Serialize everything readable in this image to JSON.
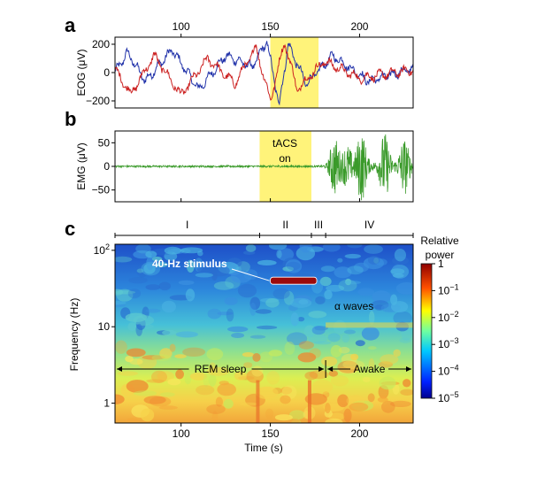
{
  "chart_data": [
    {
      "type": "line",
      "panel_label": "a",
      "ylabel": "EOG (μV)",
      "xlim": [
        63,
        230
      ],
      "ylim": [
        -250,
        250
      ],
      "x_ticks_top": [
        100,
        150,
        200
      ],
      "y_ticks": [
        -200,
        0,
        200
      ],
      "highlight": {
        "x_start": 150,
        "x_end": 177,
        "color": "#fff37a"
      },
      "series": [
        {
          "color": "#2233aa",
          "trace": [
            [
              63,
              0
            ],
            [
              70,
              140
            ],
            [
              80,
              -60
            ],
            [
              95,
              160
            ],
            [
              110,
              -120
            ],
            [
              125,
              120
            ],
            [
              140,
              40
            ],
            [
              148,
              220
            ],
            [
              155,
              -230
            ],
            [
              160,
              200
            ],
            [
              170,
              -80
            ],
            [
              185,
              120
            ],
            [
              205,
              -60
            ],
            [
              230,
              30
            ]
          ]
        },
        {
          "color": "#cc2222",
          "trace": [
            [
              63,
              20
            ],
            [
              72,
              -150
            ],
            [
              85,
              120
            ],
            [
              100,
              -160
            ],
            [
              115,
              100
            ],
            [
              130,
              -80
            ],
            [
              142,
              180
            ],
            [
              150,
              -200
            ],
            [
              158,
              220
            ],
            [
              165,
              -120
            ],
            [
              180,
              80
            ],
            [
              200,
              -40
            ],
            [
              230,
              20
            ]
          ]
        }
      ]
    },
    {
      "type": "line",
      "panel_label": "b",
      "ylabel": "EMG (μV)",
      "xlim": [
        63,
        230
      ],
      "ylim": [
        -75,
        75
      ],
      "y_ticks": [
        -50,
        0,
        50
      ],
      "highlight": {
        "x_start": 144,
        "x_end": 173,
        "color": "#fff37a"
      },
      "annotation": [
        "tACS",
        "on"
      ],
      "series": [
        {
          "color": "#3a9a2a",
          "quiet_until": 183,
          "quiet_amplitude": 2,
          "bursts": [
            [
              186,
              55
            ],
            [
              193,
              40
            ],
            [
              201,
              70
            ],
            [
              214,
              65
            ],
            [
              225,
              55
            ]
          ]
        }
      ]
    },
    {
      "type": "heatmap",
      "panel_label": "c",
      "xlabel": "Time (s)",
      "ylabel": "Frequency (Hz)",
      "xlim": [
        63,
        230
      ],
      "ylim_hz": [
        0.55,
        120
      ],
      "log_y": true,
      "x_ticks": [
        100,
        150,
        200
      ],
      "y_ticks": [
        {
          "value": 1,
          "label": "1"
        },
        {
          "value": 10,
          "label": "10"
        },
        {
          "value": 100,
          "label": "10",
          "sup": "2"
        }
      ],
      "colorbar": {
        "title": [
          "Relative",
          "power"
        ],
        "ticks": [
          {
            "value": 1,
            "label": "1",
            "sup": ""
          },
          {
            "value": 0.1,
            "label": "10",
            "sup": "−1"
          },
          {
            "value": 0.01,
            "label": "10",
            "sup": "−2"
          },
          {
            "value": 0.001,
            "label": "10",
            "sup": "−3"
          },
          {
            "value": 0.0001,
            "label": "10",
            "sup": "−4"
          },
          {
            "value": 1e-05,
            "label": "10",
            "sup": "−5"
          }
        ]
      },
      "phases": [
        {
          "label": "I",
          "start": 63,
          "end": 144
        },
        {
          "label": "II",
          "start": 144,
          "end": 173
        },
        {
          "label": "III",
          "start": 173,
          "end": 181
        },
        {
          "label": "IV",
          "start": 181,
          "end": 230
        }
      ],
      "stimulus": {
        "label": "40-Hz stimulus",
        "freq_hz": 40,
        "x_start": 150,
        "x_end": 176
      },
      "alpha_label": "α waves",
      "states": [
        {
          "label": "REM sleep",
          "start": 63,
          "end": 181
        },
        {
          "label": "Awake",
          "start": 181,
          "end": 230
        }
      ]
    }
  ]
}
